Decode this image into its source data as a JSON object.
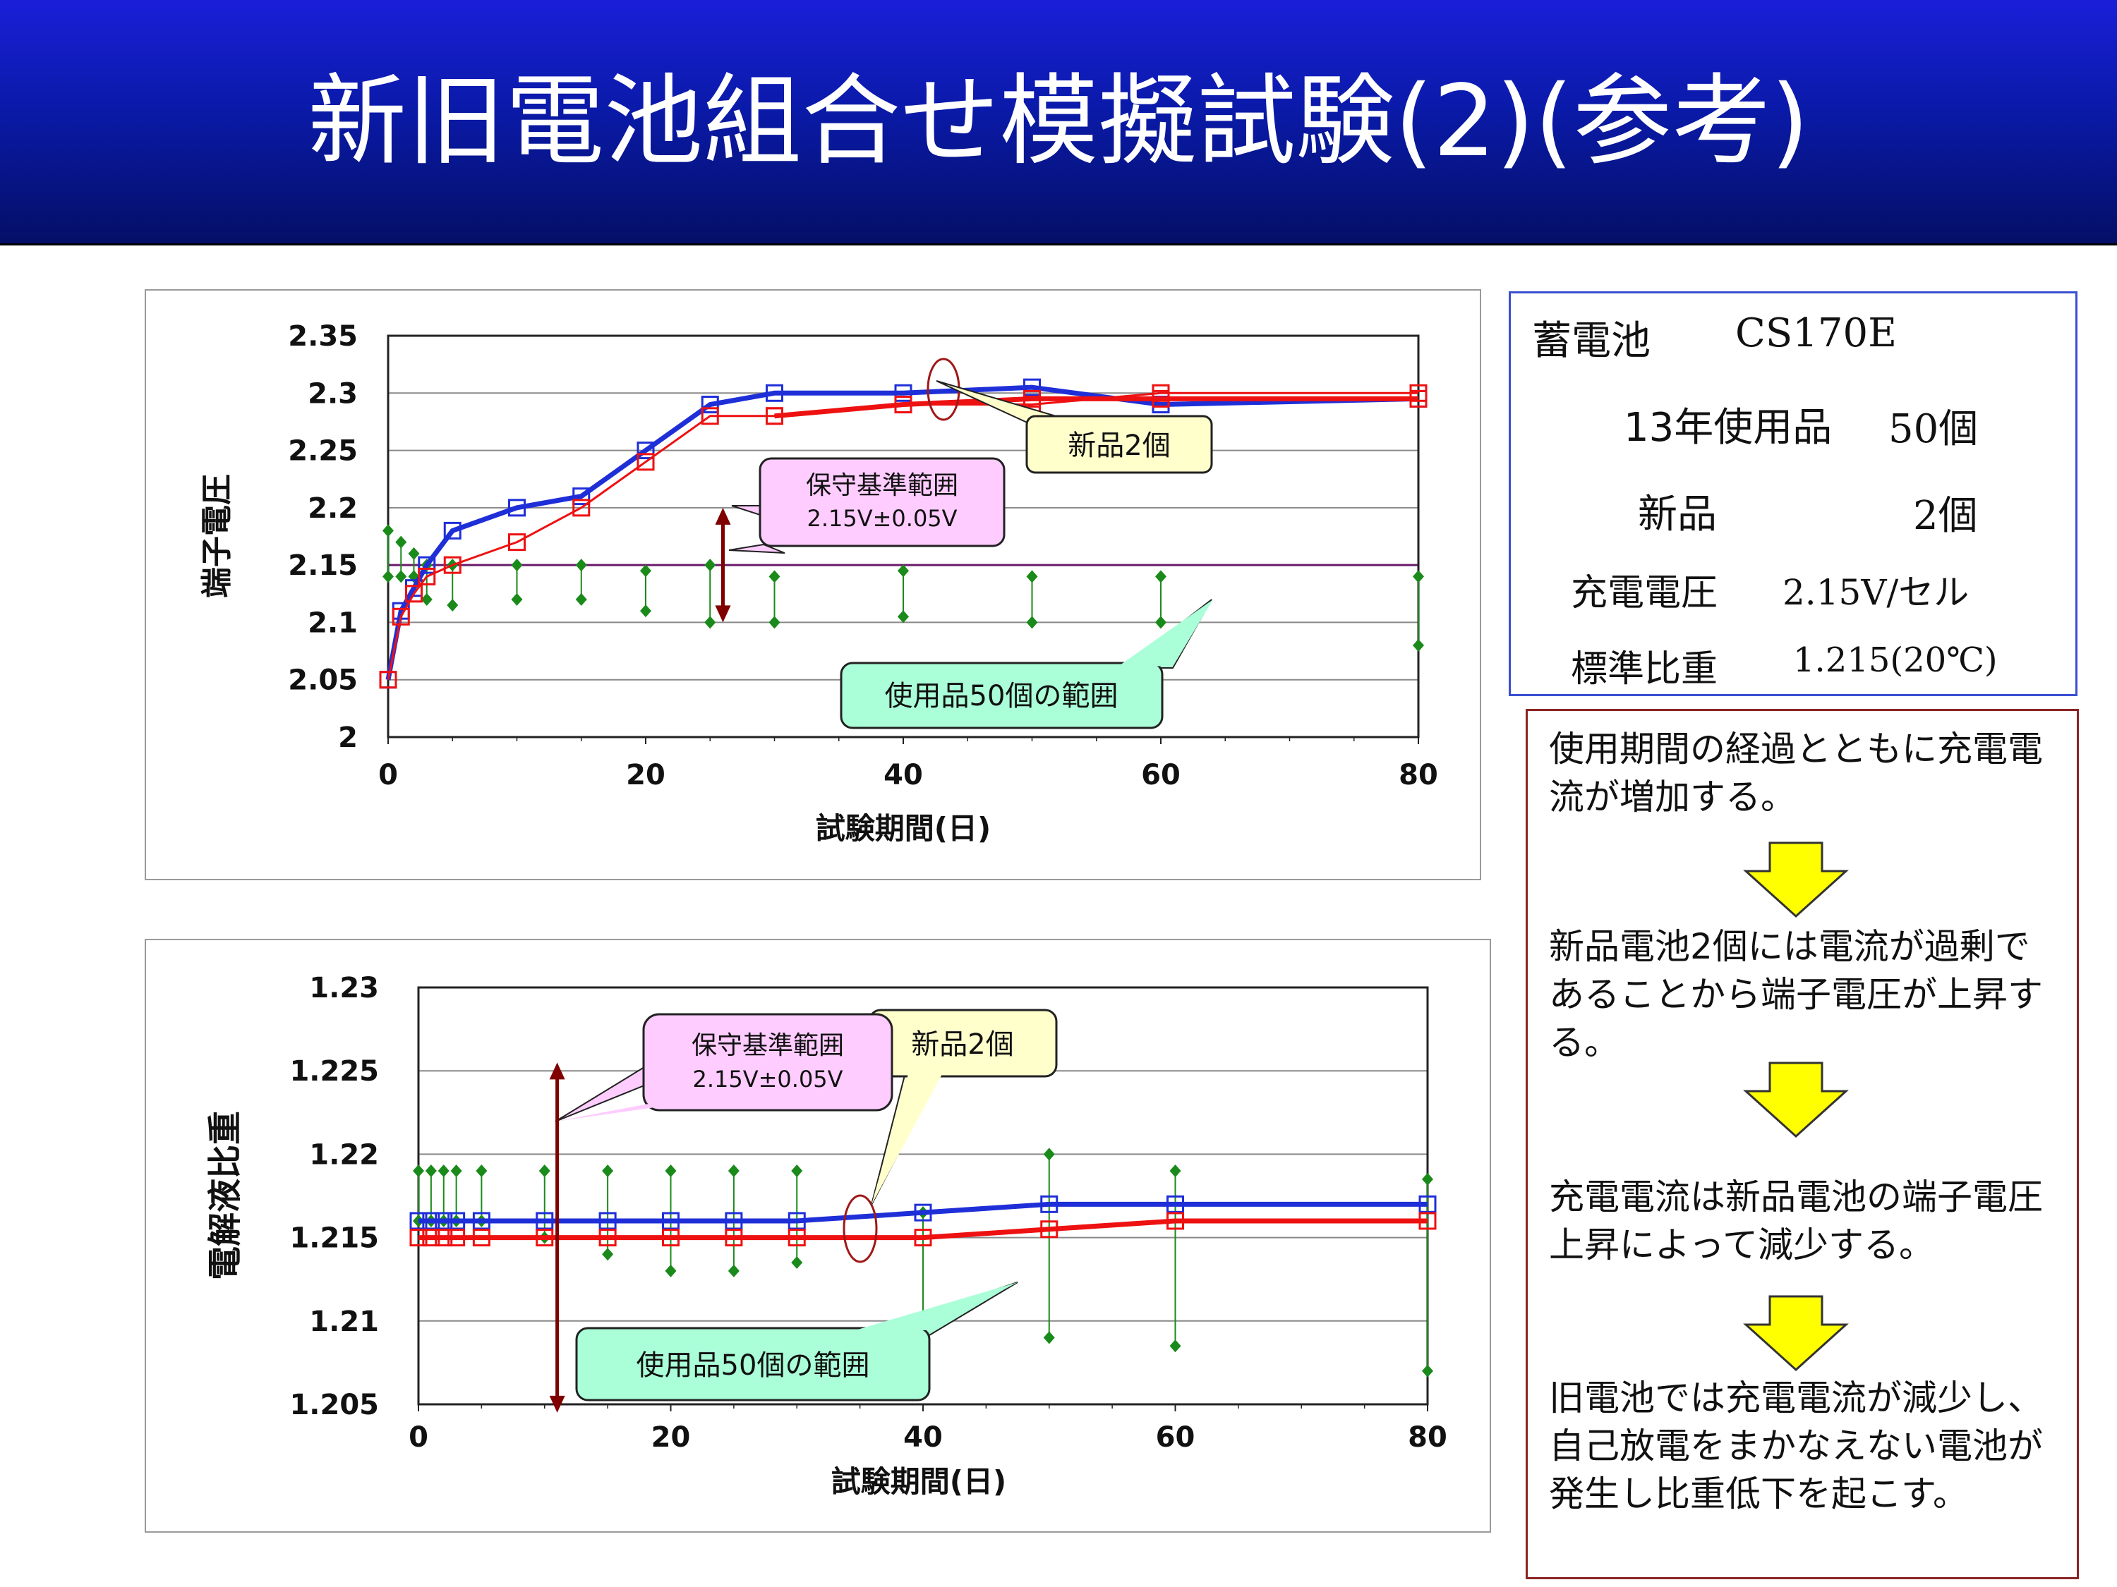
{
  "title": "新旧電池組合せ模擬試験(2)(参考)",
  "colors": {
    "header_top": "#1a1fd8",
    "header_bottom": "#040f66",
    "new_battery": "#1f2fd8",
    "sim_red": "#ee1111",
    "used_range": "#1a8a1a",
    "info_border": "#3a4fd0",
    "text_border": "#8b2424",
    "arrow_fill": "#ffff00"
  },
  "info": {
    "battery_label": "蓄電池",
    "battery_model": "CS170E",
    "used_label": "13年使用品",
    "used_count": "50個",
    "new_label": "新品",
    "new_count": "2個",
    "voltage_label": "充電電圧",
    "voltage_value": "2.15V/セル",
    "gravity_label": "標準比重",
    "gravity_value": "1.215(20℃)"
  },
  "explanation": {
    "p1": "使用期間の経過とともに充電電流が増加する。",
    "p2": "新品電池2個には電流が過剰であることから端子電圧が上昇する。",
    "p3": "充電電流は新品電池の端子電圧上昇によって減少する。",
    "p4": "旧電池では充電電流が減少し、自己放電をまかなえない電池が発生し比重低下を起こす。",
    "arrow_icon": "down-arrow-icon"
  },
  "chart_data": [
    {
      "type": "line",
      "ylabel": "端子電圧",
      "xlabel": "試験期間(日)",
      "xlim": [
        0,
        80
      ],
      "ylim": [
        2,
        2.35
      ],
      "xticks": [
        "0",
        "20",
        "40",
        "60",
        "80"
      ],
      "yticks": [
        "2",
        "2.05",
        "2.1",
        "2.15",
        "2.2",
        "2.25",
        "2.3",
        "2.35"
      ],
      "grid": true,
      "reference_line": 2.15,
      "series": [
        {
          "color": "#1f2fd8",
          "width": "thick",
          "x": [
            0,
            1,
            2,
            3,
            5,
            10,
            15,
            20,
            25,
            30,
            40,
            50,
            60,
            80
          ],
          "y": [
            2.05,
            2.11,
            2.13,
            2.15,
            2.18,
            2.2,
            2.21,
            2.25,
            2.29,
            2.3,
            2.3,
            2.305,
            2.29,
            2.295
          ]
        },
        {
          "color": "#ee1111",
          "width": "thin",
          "x": [
            0,
            1,
            2,
            3,
            5,
            10,
            15,
            20,
            25,
            30,
            40,
            50,
            60,
            80
          ],
          "y": [
            2.05,
            2.105,
            2.125,
            2.14,
            2.15,
            2.17,
            2.2,
            2.24,
            2.28,
            2.28,
            2.29,
            2.29,
            2.3,
            2.3
          ]
        },
        {
          "color": "#ee1111",
          "width": "thick",
          "x": [
            30,
            40,
            50,
            60,
            80
          ],
          "y": [
            2.28,
            2.29,
            2.295,
            2.295,
            2.295
          ]
        }
      ],
      "range_bars": [
        {
          "x": 0,
          "high": 2.18,
          "low": 2.14
        },
        {
          "x": 1,
          "high": 2.17,
          "low": 2.14
        },
        {
          "x": 2,
          "high": 2.16,
          "low": 2.14
        },
        {
          "x": 3,
          "high": 2.15,
          "low": 2.12
        },
        {
          "x": 5,
          "high": 2.15,
          "low": 2.115
        },
        {
          "x": 10,
          "high": 2.15,
          "low": 2.12
        },
        {
          "x": 15,
          "high": 2.15,
          "low": 2.12
        },
        {
          "x": 20,
          "high": 2.145,
          "low": 2.11
        },
        {
          "x": 25,
          "high": 2.15,
          "low": 2.1
        },
        {
          "x": 30,
          "high": 2.14,
          "low": 2.1
        },
        {
          "x": 40,
          "high": 2.145,
          "low": 2.105
        },
        {
          "x": 50,
          "high": 2.14,
          "low": 2.1
        },
        {
          "x": 60,
          "high": 2.14,
          "low": 2.1
        },
        {
          "x": 80,
          "high": 2.14,
          "low": 2.08
        }
      ],
      "maintenance_arrow": {
        "x": 26,
        "high": 2.2,
        "low": 2.1
      },
      "annotations": {
        "new": "新品2個",
        "maint_title": "保守基準範囲",
        "maint_range": "2.15V±0.05V",
        "used": "使用品50個の範囲"
      }
    },
    {
      "type": "line",
      "ylabel": "電解液比重",
      "xlabel": "試験期間(日)",
      "xlim": [
        0,
        80
      ],
      "ylim": [
        1.205,
        1.23
      ],
      "xticks": [
        "0",
        "20",
        "40",
        "60",
        "80"
      ],
      "yticks": [
        "1.205",
        "1.21",
        "1.215",
        "1.22",
        "1.225",
        "1.23"
      ],
      "grid": true,
      "series": [
        {
          "color": "#1f2fd8",
          "width": "thick",
          "x": [
            0,
            1,
            2,
            3,
            5,
            10,
            15,
            20,
            25,
            30,
            40,
            50,
            60,
            80
          ],
          "y": [
            1.216,
            1.216,
            1.216,
            1.216,
            1.216,
            1.216,
            1.216,
            1.216,
            1.216,
            1.216,
            1.2165,
            1.217,
            1.217,
            1.217
          ]
        },
        {
          "color": "#ee1111",
          "width": "thick",
          "x": [
            0,
            1,
            2,
            3,
            5,
            10,
            15,
            20,
            25,
            30,
            40,
            50,
            60,
            80
          ],
          "y": [
            1.215,
            1.215,
            1.215,
            1.215,
            1.215,
            1.215,
            1.215,
            1.215,
            1.215,
            1.215,
            1.215,
            1.2155,
            1.216,
            1.216
          ]
        }
      ],
      "range_bars": [
        {
          "x": 0,
          "high": 1.219,
          "low": 1.216
        },
        {
          "x": 1,
          "high": 1.219,
          "low": 1.216
        },
        {
          "x": 2,
          "high": 1.219,
          "low": 1.216
        },
        {
          "x": 3,
          "high": 1.219,
          "low": 1.216
        },
        {
          "x": 5,
          "high": 1.219,
          "low": 1.216
        },
        {
          "x": 10,
          "high": 1.219,
          "low": 1.215
        },
        {
          "x": 15,
          "high": 1.219,
          "low": 1.214
        },
        {
          "x": 20,
          "high": 1.219,
          "low": 1.213
        },
        {
          "x": 25,
          "high": 1.219,
          "low": 1.213
        },
        {
          "x": 30,
          "high": 1.219,
          "low": 1.2135
        },
        {
          "x": 40,
          "high": 1.2165,
          "low": 1.21
        },
        {
          "x": 50,
          "high": 1.22,
          "low": 1.209
        },
        {
          "x": 60,
          "high": 1.219,
          "low": 1.2085
        },
        {
          "x": 80,
          "high": 1.2185,
          "low": 1.207
        }
      ],
      "maintenance_arrow": {
        "x": 11,
        "high": 1.2255,
        "low": 1.2045
      },
      "annotations": {
        "new": "新品2個",
        "maint_title": "保守基準範囲",
        "maint_range": "2.15V±0.05V",
        "used": "使用品50個の範囲"
      }
    }
  ]
}
